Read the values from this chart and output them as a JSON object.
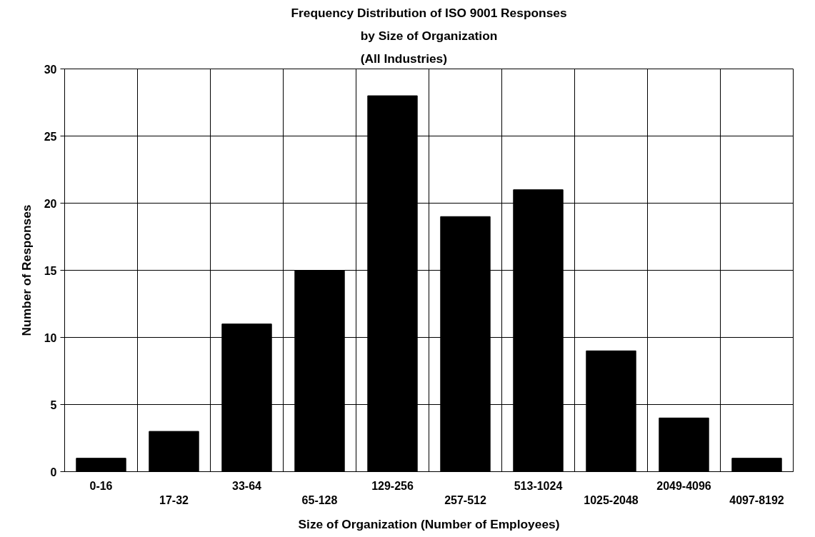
{
  "chart_data": {
    "type": "bar",
    "title": "Frequency Distribution of ISO 9001 Responses",
    "subtitle": "by Size of Organization\n(All Industries)",
    "xlabel": "Size of Organization (Number of Employees)",
    "ylabel": "Number of Responses",
    "categories": [
      "0-16",
      "17-32",
      "33-64",
      "65-128",
      "129-256",
      "257-512",
      "513-1024",
      "1025-2048",
      "2049-4096",
      "4097-8192"
    ],
    "values": [
      1,
      3,
      11,
      15,
      28,
      19,
      21,
      9,
      4,
      1
    ],
    "color": "#000000",
    "ylim": [
      0,
      30
    ],
    "yticks": [
      0,
      5,
      10,
      15,
      20,
      25,
      30
    ],
    "grid": true
  }
}
